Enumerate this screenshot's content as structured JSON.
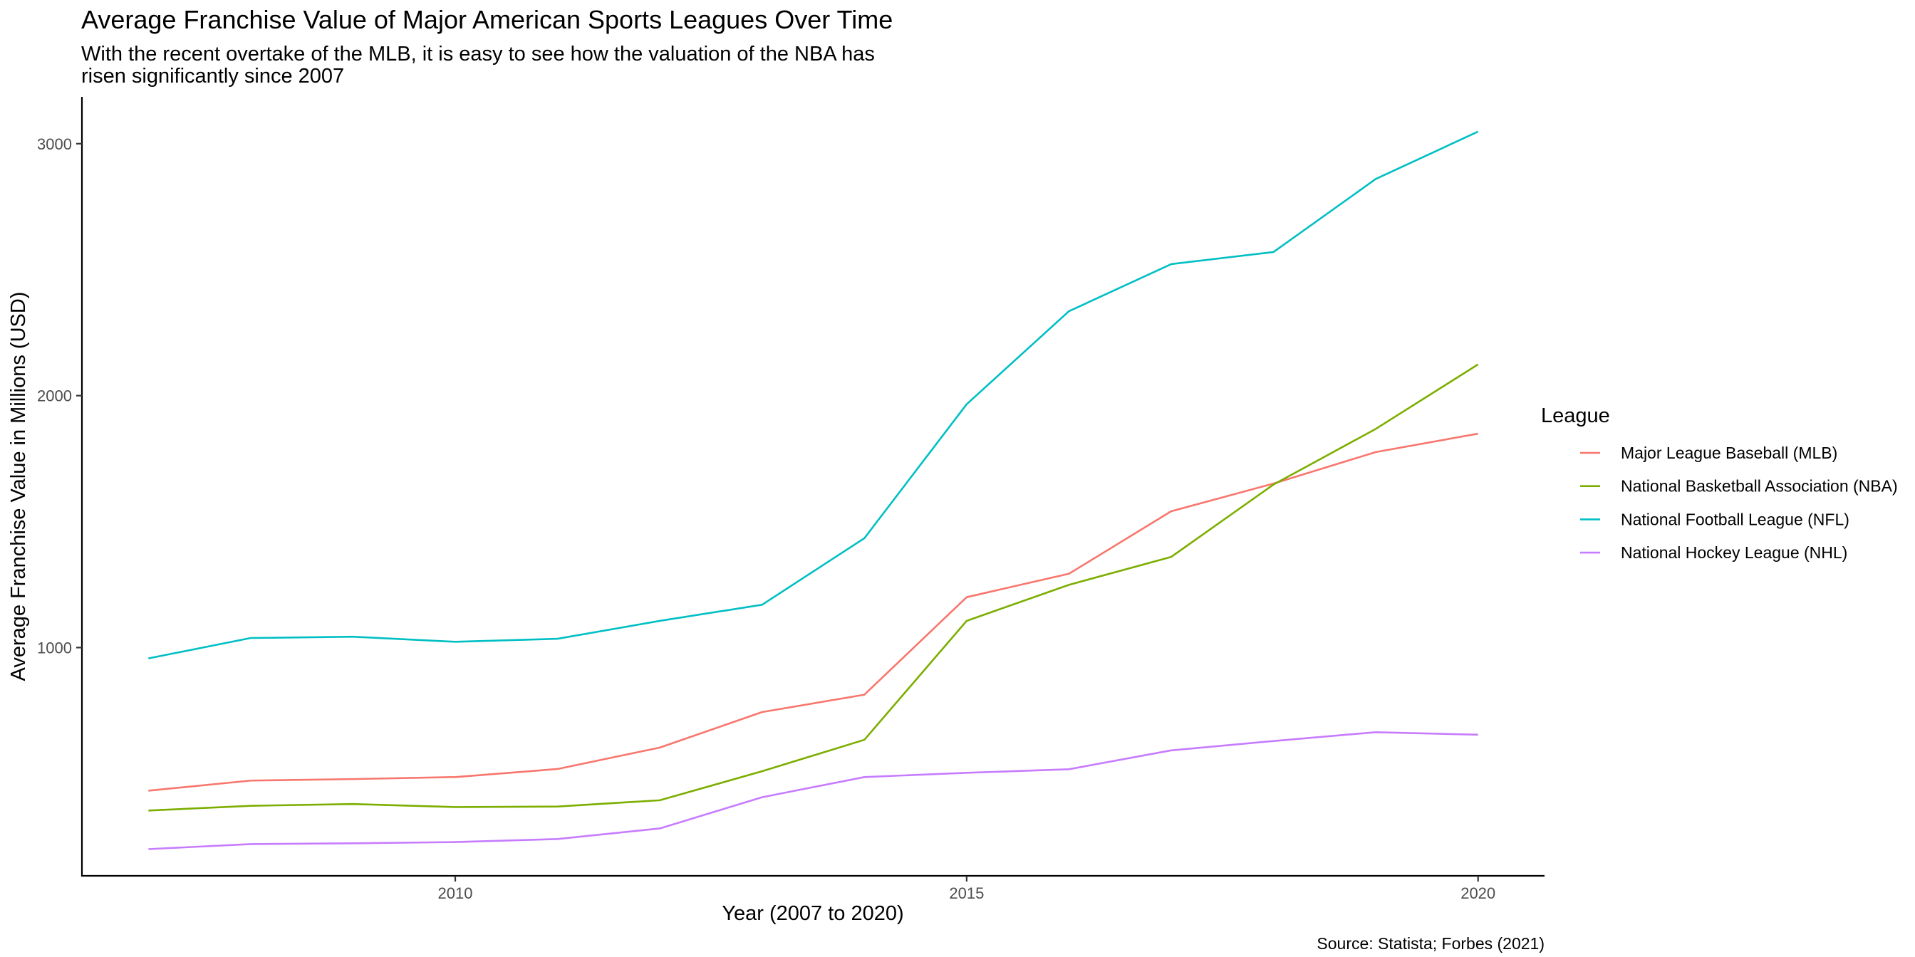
{
  "chart_data": {
    "type": "line",
    "title": "Average Franchise Value of Major American Sports Leagues Over Time",
    "subtitle_lines": [
      "With the recent overtake of the MLB, it is easy to see how the valuation of the NBA has",
      "risen significantly since 2007"
    ],
    "xlabel": "Year (2007 to 2020)",
    "ylabel": "Average Franchise Value in Millions (USD)",
    "caption": "Source: Statista; Forbes (2021)",
    "legend_title": "League",
    "legend_position": "right",
    "grid": false,
    "xlim": [
      2006.35,
      2020.65
    ],
    "ylim": [
      94,
      3186
    ],
    "x_ticks": [
      2010,
      2015,
      2020
    ],
    "y_ticks": [
      1000,
      2000,
      3000
    ],
    "x": [
      2007,
      2008,
      2009,
      2010,
      2011,
      2012,
      2013,
      2014,
      2015,
      2016,
      2017,
      2018,
      2019,
      2020
    ],
    "series": [
      {
        "name": "Major League Baseball (MLB)",
        "color": "#F8766D",
        "values": [
          432,
          472,
          478,
          486,
          518,
          603,
          744,
          813,
          1200,
          1293,
          1541,
          1651,
          1776,
          1849
        ]
      },
      {
        "name": "National Basketball Association (NBA)",
        "color": "#7CAE00",
        "values": [
          353,
          372,
          379,
          367,
          369,
          394,
          509,
          634,
          1106,
          1249,
          1360,
          1647,
          1868,
          2124
        ]
      },
      {
        "name": "National Football League (NFL)",
        "color": "#00BFC4",
        "values": [
          957,
          1038,
          1043,
          1023,
          1035,
          1106,
          1170,
          1434,
          1966,
          2335,
          2522,
          2570,
          2860,
          3048
        ]
      },
      {
        "name": "National Hockey League (NHL)",
        "color": "#C77CFF",
        "values": [
          200,
          220,
          223,
          228,
          240,
          282,
          406,
          486,
          503,
          517,
          592,
          629,
          664,
          654
        ]
      }
    ]
  }
}
